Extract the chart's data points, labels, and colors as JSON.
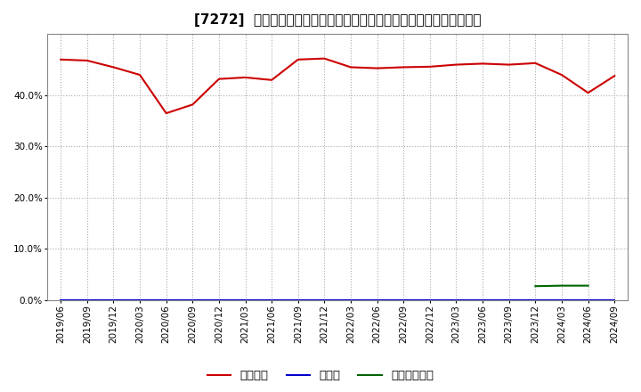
{
  "title": "[7272]  自己資本、のれん、繰延税金資産の総資産に対する比率の推移",
  "x_labels": [
    "2019/06",
    "2019/09",
    "2019/12",
    "2020/03",
    "2020/06",
    "2020/09",
    "2020/12",
    "2021/03",
    "2021/06",
    "2021/09",
    "2021/12",
    "2022/03",
    "2022/06",
    "2022/09",
    "2022/12",
    "2023/03",
    "2023/06",
    "2023/09",
    "2023/12",
    "2024/03",
    "2024/06",
    "2024/09"
  ],
  "jikoshihon": [
    0.47,
    0.468,
    0.455,
    0.44,
    0.365,
    0.382,
    0.432,
    0.435,
    0.43,
    0.47,
    0.472,
    0.455,
    0.453,
    0.455,
    0.456,
    0.46,
    0.462,
    0.46,
    0.463,
    0.44,
    0.405,
    0.438
  ],
  "noren": [
    0.0,
    0.0,
    0.0,
    0.0,
    0.0,
    0.0,
    0.0,
    0.0,
    0.0,
    0.0,
    0.0,
    0.0,
    0.0,
    0.0,
    0.0,
    0.0,
    0.0,
    0.0,
    0.0,
    0.0,
    0.0,
    0.0
  ],
  "kurinobe": [
    null,
    null,
    null,
    null,
    null,
    null,
    null,
    null,
    null,
    null,
    null,
    null,
    null,
    null,
    null,
    null,
    null,
    null,
    0.027,
    0.028,
    0.028,
    null
  ],
  "jikoshihon_color": "#cc0000",
  "noren_color": "#0000cc",
  "kurinobe_color": "#006600",
  "background_color": "#ffffff",
  "grid_color": "#aaaaaa",
  "ylim": [
    0.0,
    0.52
  ],
  "yticks": [
    0.0,
    0.1,
    0.2,
    0.3,
    0.4
  ],
  "legend_labels": [
    "自己資本",
    "のれん",
    "繰延税金資産"
  ],
  "title_fontsize": 11,
  "tick_fontsize": 7.5,
  "legend_fontsize": 9.5
}
